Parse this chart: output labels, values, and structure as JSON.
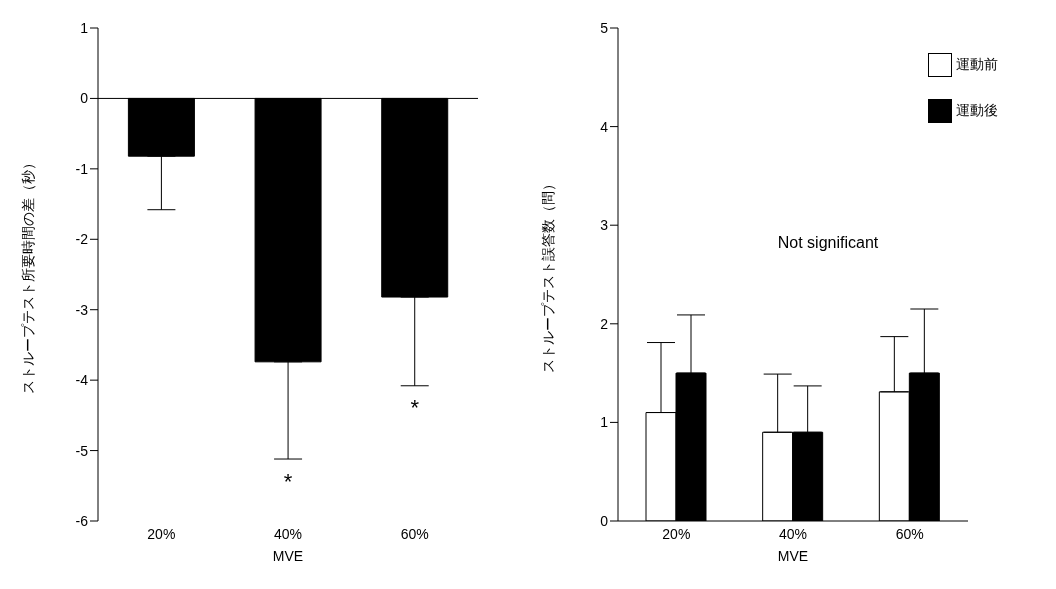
{
  "chart_data": [
    {
      "type": "bar",
      "categories": [
        "20%",
        "40%",
        "60%"
      ],
      "xlabel": "MVE",
      "ylabel": "ストループテスト所要時間の差（秒）",
      "ylim": [
        -6,
        1
      ],
      "yticks": [
        -6,
        -5,
        -4,
        -3,
        -2,
        -1,
        0,
        1
      ],
      "series": [
        {
          "color": "#000000",
          "values": [
            -0.82,
            -3.74,
            -2.82
          ],
          "errors": [
            [
              -1.58,
              -0.82
            ],
            [
              -5.12,
              -3.74
            ],
            [
              -4.08,
              -2.82
            ]
          ]
        }
      ],
      "ref_lines": [
        {
          "axis": "y",
          "value": 0
        }
      ],
      "annotations": [
        {
          "text": "*",
          "x": "40%",
          "y": -5.12
        },
        {
          "text": "*",
          "x": "60%",
          "y": -4.08
        }
      ],
      "grid": false,
      "legend": false
    },
    {
      "type": "bar",
      "categories": [
        "20%",
        "40%",
        "60%"
      ],
      "xlabel": "MVE",
      "ylabel": "ストループテスト誤答数（問）",
      "ylim": [
        0,
        5
      ],
      "yticks": [
        0,
        1,
        2,
        3,
        4,
        5
      ],
      "series": [
        {
          "name": "運動前",
          "color": "#ffffff",
          "values": [
            1.1,
            0.9,
            1.31
          ],
          "errors": [
            [
              1.1,
              1.81
            ],
            [
              0.9,
              1.49
            ],
            [
              1.31,
              1.87
            ]
          ]
        },
        {
          "name": "運動後",
          "color": "#000000",
          "values": [
            1.5,
            0.9,
            1.5
          ],
          "errors": [
            [
              1.5,
              2.09
            ],
            [
              0.9,
              1.37
            ],
            [
              1.5,
              2.15
            ]
          ]
        }
      ],
      "annotations": [
        "Not significant"
      ],
      "grid": false,
      "legend": "top right"
    }
  ]
}
